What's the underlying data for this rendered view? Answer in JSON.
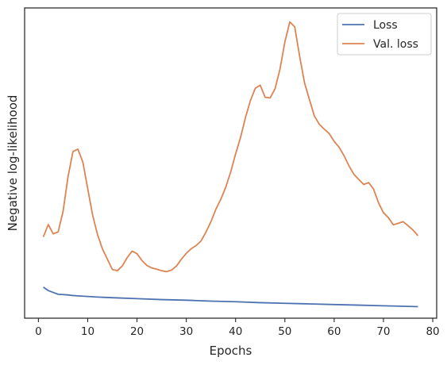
{
  "chart_data": {
    "type": "line",
    "title": "",
    "xlabel": "Epochs",
    "ylabel": "Negative log-likelihood",
    "xlim": [
      -2.8,
      80.8
    ],
    "ylim": [
      0.0,
      1.0
    ],
    "xticks": [
      0,
      10,
      20,
      30,
      40,
      50,
      60,
      70,
      80
    ],
    "show_y_tick_labels": false,
    "grid": false,
    "legend": "upper right",
    "series": [
      {
        "name": "Loss",
        "color": "#4c72b0",
        "x": [
          1,
          2,
          3,
          4,
          5,
          6,
          7,
          8,
          9,
          10,
          12,
          15,
          20,
          25,
          30,
          35,
          40,
          45,
          50,
          55,
          60,
          65,
          70,
          75,
          77
        ],
        "y": [
          0.1,
          0.089,
          0.083,
          0.077,
          0.076,
          0.075,
          0.073,
          0.072,
          0.071,
          0.07,
          0.068,
          0.066,
          0.063,
          0.06,
          0.058,
          0.055,
          0.053,
          0.05,
          0.048,
          0.046,
          0.044,
          0.042,
          0.04,
          0.038,
          0.037
        ]
      },
      {
        "name": "Val. loss",
        "color": "#dd8452",
        "x": [
          1,
          2,
          3,
          4,
          5,
          6,
          7,
          8,
          9,
          10,
          11,
          12,
          13,
          14,
          15,
          16,
          17,
          18,
          19,
          20,
          21,
          22,
          23,
          24,
          25,
          26,
          27,
          28,
          29,
          30,
          31,
          32,
          33,
          34,
          35,
          36,
          37,
          38,
          39,
          40,
          41,
          42,
          43,
          44,
          45,
          46,
          47,
          48,
          49,
          50,
          51,
          52,
          53,
          54,
          55,
          56,
          57,
          58,
          59,
          60,
          61,
          62,
          63,
          64,
          65,
          66,
          67,
          68,
          69,
          70,
          71,
          72,
          73,
          74,
          75,
          76,
          77
        ],
        "y": [
          0.262,
          0.302,
          0.272,
          0.278,
          0.344,
          0.455,
          0.537,
          0.545,
          0.504,
          0.418,
          0.332,
          0.269,
          0.223,
          0.19,
          0.157,
          0.153,
          0.168,
          0.195,
          0.216,
          0.208,
          0.186,
          0.17,
          0.162,
          0.158,
          0.153,
          0.15,
          0.155,
          0.168,
          0.19,
          0.209,
          0.224,
          0.234,
          0.249,
          0.278,
          0.311,
          0.351,
          0.383,
          0.422,
          0.471,
          0.529,
          0.582,
          0.646,
          0.701,
          0.741,
          0.751,
          0.712,
          0.71,
          0.739,
          0.802,
          0.89,
          0.955,
          0.939,
          0.844,
          0.758,
          0.704,
          0.651,
          0.625,
          0.609,
          0.595,
          0.57,
          0.551,
          0.524,
          0.491,
          0.464,
          0.447,
          0.431,
          0.437,
          0.416,
          0.372,
          0.34,
          0.324,
          0.301,
          0.306,
          0.311,
          0.298,
          0.284,
          0.266
        ]
      }
    ]
  }
}
